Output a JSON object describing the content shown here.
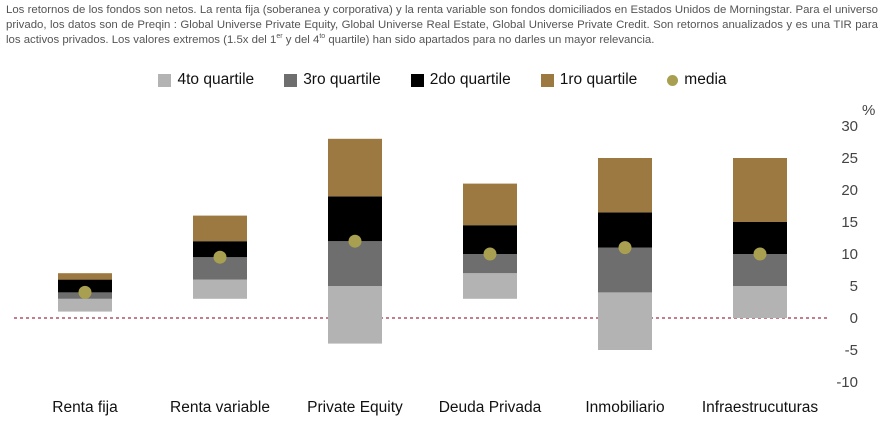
{
  "note": {
    "p1": "Los retornos de los fondos son netos. La renta fija (soberanea y corporativa) y la renta variable son fondos domiciliados en Estados Unidos de Morningstar. Para el universo privado, los datos son de Preqin : Global Universe Private Equity, Global Universe Real Estate, Global Universe Private Credit. Son retornos anualizados y es una TIR para los activos privados. Los valores extremos (1.5x del 1",
    "sup1": "er",
    "p2": " y del 4",
    "sup2": "to",
    "p3": " quartile) han sido apartados para no darles un mayor relevancia."
  },
  "colors": {
    "q4": "#b3b3b3",
    "q3": "#6e6e6e",
    "q2": "#000000",
    "q1": "#9c7940",
    "media": "#a8a050",
    "zero_line": "#b0506a"
  },
  "chart_data": {
    "type": "bar",
    "subtype": "stacked-floating-quartiles",
    "categories": [
      "Renta fija",
      "Renta variable",
      "Private Equity",
      "Deuda Privada",
      "Inmobiliario",
      "Infraestrucuturas"
    ],
    "series": [
      {
        "name": "4to quartile",
        "key": "q4",
        "low": [
          1,
          3,
          -4,
          3,
          -5,
          0
        ],
        "high": [
          3,
          6,
          5,
          7,
          4,
          5
        ]
      },
      {
        "name": "3ro quartile",
        "key": "q3",
        "low": [
          3,
          6,
          5,
          7,
          4,
          5
        ],
        "high": [
          4,
          9.5,
          12,
          10,
          11,
          10
        ]
      },
      {
        "name": "2do quartile",
        "key": "q2",
        "low": [
          4,
          9.5,
          12,
          10,
          11,
          10
        ],
        "high": [
          6,
          12,
          19,
          14.5,
          16.5,
          15
        ]
      },
      {
        "name": "1ro quartile",
        "key": "q1",
        "low": [
          6,
          12,
          19,
          14.5,
          16.5,
          15
        ],
        "high": [
          7,
          16,
          28,
          21,
          25,
          25
        ]
      }
    ],
    "media": {
      "name": "media",
      "values": [
        4,
        9.5,
        12,
        10,
        11,
        10
      ]
    },
    "yticks": [
      30,
      25,
      20,
      15,
      10,
      5,
      0,
      -5,
      -10
    ],
    "ylim": [
      -10,
      30
    ],
    "yunit": "%",
    "grid": false,
    "zero_line": "dashed",
    "legend_position": "top-center"
  }
}
